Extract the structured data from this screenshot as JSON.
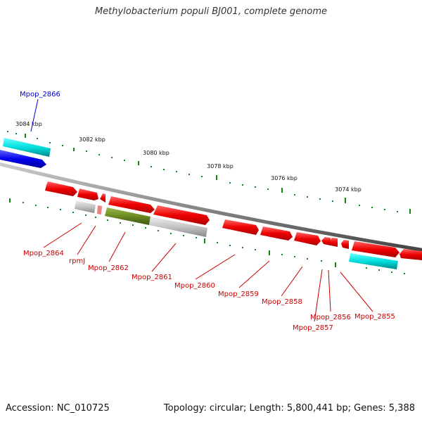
{
  "title": "Methylobacterium populi BJ001, complete genome",
  "footer": {
    "accession": "Accession: NC_010725",
    "topology": "Topology: circular; Length: 5,800,441 bp; Genes: 5,388"
  },
  "colors": {
    "backbone": "#808080",
    "red_gene": "#ee0000",
    "cyan_gene": "#00cccc",
    "blue_gene": "#0000ee",
    "grey_gene": "#bbbbbb",
    "olive_gene": "#668822",
    "tick_green": "#118811",
    "label_red": "#cc0000",
    "label_blue": "#0000cc"
  },
  "scale_labels": [
    "3084 kbp",
    "3082 kbp",
    "3080 kbp",
    "3078 kbp",
    "3076 kbp",
    "3074 kbp"
  ],
  "gene_labels": [
    {
      "text": "Mpop_2866",
      "color": "blue"
    },
    {
      "text": "Mpop_2864",
      "color": "red"
    },
    {
      "text": "rpmJ",
      "color": "red"
    },
    {
      "text": "Mpop_2862",
      "color": "red"
    },
    {
      "text": "Mpop_2861",
      "color": "red"
    },
    {
      "text": "Mpop_2860",
      "color": "red"
    },
    {
      "text": "Mpop_2859",
      "color": "red"
    },
    {
      "text": "Mpop_2858",
      "color": "red"
    },
    {
      "text": "Mpop_2857",
      "color": "red"
    },
    {
      "text": "Mpop_2856",
      "color": "red"
    },
    {
      "text": "Mpop_2855",
      "color": "red"
    }
  ]
}
